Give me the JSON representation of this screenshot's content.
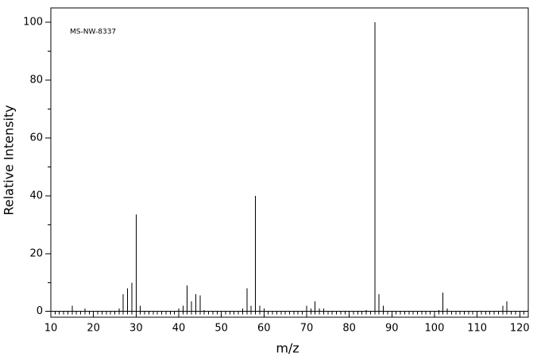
{
  "chart_data": {
    "type": "stem",
    "annotation": "MS-NW-8337",
    "xlabel": "m/z",
    "ylabel": "Relative Intensity",
    "x": [
      15,
      18,
      26,
      27,
      28,
      29,
      30,
      31,
      40,
      41,
      42,
      43,
      44,
      45,
      46,
      55,
      56,
      57,
      58,
      59,
      60,
      70,
      71,
      72,
      73,
      74,
      84,
      86,
      87,
      88,
      101,
      102,
      103,
      116,
      117
    ],
    "values": [
      2,
      1,
      1,
      6,
      8,
      10,
      33.5,
      2,
      1,
      2,
      9,
      3.5,
      6,
      5.5,
      0.5,
      1,
      8,
      2,
      40,
      2,
      1,
      2,
      1,
      3.5,
      1,
      1,
      0.5,
      100,
      6,
      2,
      0.5,
      6.5,
      1,
      2,
      3.5
    ],
    "color": "#000000",
    "xlim": [
      10,
      122
    ],
    "ylim": [
      -2,
      105
    ],
    "xticks": [
      10,
      20,
      30,
      40,
      50,
      60,
      70,
      80,
      90,
      100,
      110,
      120
    ],
    "yticks": [
      0,
      20,
      40,
      60,
      80,
      100
    ],
    "xminor": 1,
    "yminor": 10
  }
}
